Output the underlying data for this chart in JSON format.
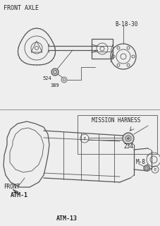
{
  "bg_color": "#eeeeee",
  "line_color": "#555555",
  "text_color": "#222222",
  "title_top": "FRONT AXLE",
  "label_b1830": "B-18-30",
  "label_524": "524",
  "label_389": "389",
  "label_mission": "MISSION HARNESS",
  "label_234": "234",
  "label_front": "FRONT",
  "label_atm1": "ATM-1",
  "label_atm13": "ATM-13",
  "label_m8": "M-8",
  "label_e1": "E",
  "label_e2": "E",
  "fig_width": 2.28,
  "fig_height": 3.2,
  "dpi": 100
}
